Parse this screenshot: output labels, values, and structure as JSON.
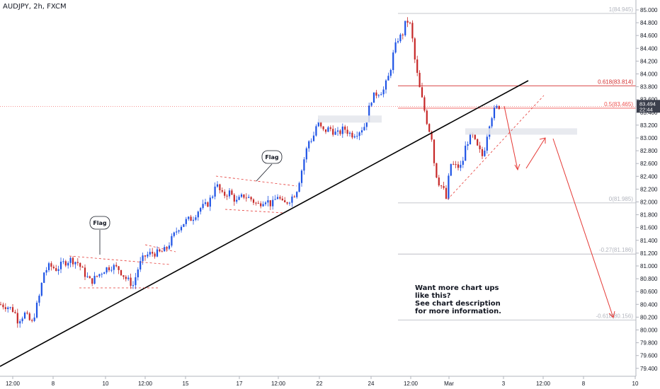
{
  "header": {
    "symbol": "AUDJPY, 2h, FXCM"
  },
  "note": {
    "lines": [
      "Want more chart ups",
      "like this?",
      "See chart description",
      "for more information."
    ]
  },
  "callouts": [
    "Flag",
    "Flag"
  ],
  "price_tag": {
    "price": "83.494",
    "countdown": "22:44"
  },
  "fib_levels": [
    {
      "label": "1(84.945)",
      "value": 84.945,
      "color": "#b2b5be"
    },
    {
      "label": "0.618(83.814)",
      "value": 83.814,
      "color": "#d32f2f"
    },
    {
      "label": "0.5(83.465)",
      "value": 83.465,
      "color": "#ef5350"
    },
    {
      "label": "0(81.985)",
      "value": 81.985,
      "color": "#b2b5be"
    },
    {
      "label": "-0.27(81.186)",
      "value": 81.186,
      "color": "#b2b5be"
    },
    {
      "label": "-0.618(80.156)",
      "value": 80.156,
      "color": "#b2b5be"
    }
  ],
  "colors": {
    "bull": "#1e53e5",
    "bear": "#c62828",
    "trendline": "#000000",
    "projection": "#e53935",
    "grid": "#dde1eb"
  },
  "chart_data": {
    "type": "candlestick",
    "title": "AUDJPY, 2h, FXCM",
    "xlabel": "",
    "ylabel": "",
    "ylim": [
      79.3,
      85.1
    ],
    "y_ticks": [
      85.0,
      84.8,
      84.6,
      84.4,
      84.2,
      84.0,
      83.8,
      83.6,
      83.4,
      83.2,
      83.0,
      82.8,
      82.6,
      82.4,
      82.2,
      82.0,
      81.8,
      81.6,
      81.4,
      81.2,
      81.0,
      80.8,
      80.6,
      80.4,
      80.2,
      80.0,
      79.8,
      79.6,
      79.4
    ],
    "x_ticks": [
      "12:00",
      "8",
      "10",
      "12:00",
      "15",
      "17",
      "12:00",
      "22",
      "24",
      "12:00",
      "Mar",
      "3",
      "12:00",
      "8",
      "10"
    ],
    "close_path": [
      [
        0,
        80.4
      ],
      [
        10,
        80.37
      ],
      [
        20,
        80.3
      ],
      [
        25,
        80.15
      ],
      [
        35,
        80.25
      ],
      [
        45,
        80.1
      ],
      [
        55,
        80.5
      ],
      [
        62,
        80.9
      ],
      [
        70,
        81.0
      ],
      [
        80,
        80.95
      ],
      [
        90,
        81.05
      ],
      [
        100,
        81.1
      ],
      [
        110,
        81.05
      ],
      [
        118,
        80.9
      ],
      [
        128,
        80.75
      ],
      [
        138,
        80.85
      ],
      [
        148,
        80.95
      ],
      [
        158,
        81.0
      ],
      [
        168,
        80.95
      ],
      [
        178,
        80.8
      ],
      [
        188,
        80.7
      ],
      [
        196,
        81.0
      ],
      [
        204,
        81.15
      ],
      [
        214,
        81.2
      ],
      [
        224,
        81.2
      ],
      [
        234,
        81.25
      ],
      [
        244,
        81.45
      ],
      [
        252,
        81.6
      ],
      [
        262,
        81.7
      ],
      [
        272,
        81.75
      ],
      [
        282,
        81.9
      ],
      [
        292,
        81.95
      ],
      [
        300,
        82.1
      ],
      [
        304,
        82.3
      ],
      [
        314,
        82.1
      ],
      [
        324,
        82.15
      ],
      [
        334,
        82.0
      ],
      [
        344,
        82.1
      ],
      [
        354,
        82.05
      ],
      [
        364,
        81.95
      ],
      [
        374,
        82.05
      ],
      [
        384,
        81.95
      ],
      [
        392,
        82.1
      ],
      [
        400,
        81.95
      ],
      [
        410,
        82.05
      ],
      [
        418,
        82.15
      ],
      [
        424,
        82.4
      ],
      [
        430,
        82.7
      ],
      [
        436,
        82.95
      ],
      [
        442,
        83.0
      ],
      [
        448,
        83.25
      ],
      [
        456,
        83.1
      ],
      [
        466,
        83.15
      ],
      [
        476,
        83.05
      ],
      [
        486,
        83.15
      ],
      [
        496,
        83.05
      ],
      [
        506,
        83.1
      ],
      [
        516,
        83.2
      ],
      [
        524,
        83.6
      ],
      [
        532,
        83.7
      ],
      [
        542,
        83.75
      ],
      [
        550,
        84.0
      ],
      [
        556,
        84.35
      ],
      [
        562,
        84.55
      ],
      [
        568,
        84.6
      ],
      [
        574,
        84.85
      ],
      [
        580,
        84.75
      ],
      [
        586,
        84.2
      ],
      [
        592,
        83.8
      ],
      [
        598,
        83.5
      ],
      [
        604,
        83.2
      ],
      [
        610,
        83.0
      ],
      [
        614,
        82.5
      ],
      [
        620,
        82.3
      ],
      [
        626,
        82.2
      ],
      [
        630,
        82.05
      ],
      [
        636,
        82.6
      ],
      [
        644,
        82.55
      ],
      [
        652,
        82.55
      ],
      [
        658,
        82.9
      ],
      [
        666,
        83.05
      ],
      [
        674,
        82.85
      ],
      [
        682,
        82.7
      ],
      [
        690,
        83.2
      ],
      [
        696,
        83.4
      ],
      [
        704,
        83.5
      ],
      [
        708,
        83.49
      ]
    ],
    "annotations": [
      "Trendline support",
      "Flag patterns",
      "Fibonacci retracement levels",
      "Projected path to -0.618(80.156)"
    ]
  }
}
